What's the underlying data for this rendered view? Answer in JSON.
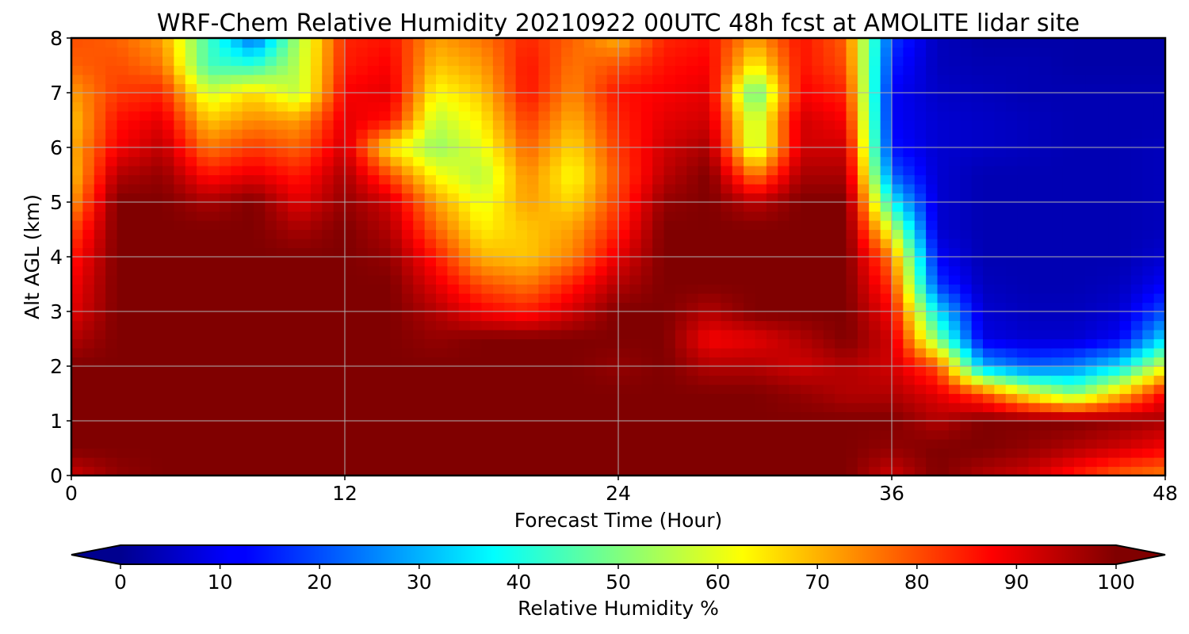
{
  "chart_data": {
    "type": "heatmap",
    "title": "WRF-Chem Relative Humidity 20210922 00UTC 48h fcst at AMOLITE lidar site",
    "xlabel": "Forecast Time (Hour)",
    "ylabel": "Alt AGL (km)",
    "xlim": [
      0,
      48
    ],
    "ylim": [
      0,
      8
    ],
    "x_ticks": [
      "0",
      "12",
      "24",
      "36",
      "48"
    ],
    "y_ticks": [
      "0",
      "1",
      "2",
      "3",
      "4",
      "5",
      "6",
      "7",
      "8"
    ],
    "grid": true,
    "colormap": "jet",
    "colorbar": {
      "label": "Relative Humidity %",
      "range": [
        0,
        100
      ],
      "ticks": [
        "0",
        "10",
        "20",
        "30",
        "40",
        "50",
        "60",
        "70",
        "80",
        "90",
        "100"
      ],
      "extend": "both",
      "orientation": "horizontal",
      "placement": "bottom"
    },
    "x": [
      0,
      2,
      4,
      6,
      8,
      10,
      12,
      14,
      16,
      18,
      20,
      22,
      24,
      26,
      28,
      30,
      32,
      34,
      36,
      38,
      40,
      42,
      44,
      46,
      48
    ],
    "y": [
      0,
      0.5,
      1,
      1.5,
      2,
      2.5,
      3,
      3.5,
      4,
      4.5,
      5,
      5.5,
      6,
      6.5,
      7,
      7.5,
      8
    ],
    "z": [
      [
        92,
        98,
        100,
        100,
        100,
        100,
        100,
        100,
        100,
        100,
        100,
        100,
        100,
        100,
        100,
        100,
        100,
        100,
        92,
        100,
        95,
        92,
        85,
        78,
        75
      ],
      [
        100,
        100,
        100,
        100,
        100,
        100,
        100,
        100,
        100,
        100,
        100,
        100,
        100,
        100,
        100,
        100,
        100,
        100,
        98,
        100,
        100,
        98,
        95,
        92,
        88
      ],
      [
        100,
        100,
        100,
        100,
        100,
        100,
        100,
        100,
        100,
        100,
        100,
        100,
        100,
        100,
        100,
        100,
        100,
        100,
        100,
        95,
        100,
        100,
        100,
        98,
        96
      ],
      [
        100,
        100,
        100,
        100,
        100,
        100,
        100,
        100,
        100,
        100,
        100,
        100,
        100,
        100,
        100,
        100,
        98,
        95,
        95,
        90,
        80,
        62,
        50,
        68,
        88
      ],
      [
        100,
        100,
        100,
        100,
        100,
        100,
        100,
        100,
        100,
        100,
        100,
        100,
        98,
        100,
        95,
        95,
        92,
        95,
        92,
        80,
        30,
        22,
        25,
        35,
        60
      ],
      [
        95,
        100,
        100,
        100,
        100,
        100,
        100,
        100,
        98,
        100,
        100,
        100,
        100,
        100,
        88,
        90,
        95,
        100,
        92,
        50,
        10,
        8,
        8,
        12,
        35
      ],
      [
        90,
        100,
        100,
        100,
        100,
        100,
        100,
        100,
        95,
        88,
        85,
        92,
        100,
        100,
        95,
        100,
        100,
        100,
        88,
        35,
        8,
        6,
        6,
        8,
        20
      ],
      [
        88,
        100,
        100,
        100,
        100,
        100,
        100,
        100,
        90,
        80,
        76,
        85,
        95,
        100,
        100,
        100,
        100,
        100,
        82,
        18,
        6,
        5,
        5,
        6,
        12
      ],
      [
        85,
        100,
        100,
        100,
        100,
        100,
        100,
        98,
        85,
        70,
        68,
        75,
        90,
        100,
        100,
        100,
        100,
        100,
        75,
        12,
        5,
        5,
        5,
        5,
        8
      ],
      [
        80,
        100,
        100,
        100,
        100,
        96,
        100,
        95,
        78,
        64,
        68,
        72,
        85,
        100,
        100,
        100,
        100,
        100,
        58,
        8,
        5,
        5,
        5,
        5,
        6
      ],
      [
        72,
        100,
        100,
        96,
        100,
        90,
        98,
        92,
        72,
        60,
        72,
        66,
        82,
        98,
        100,
        94,
        100,
        100,
        38,
        8,
        5,
        5,
        5,
        5,
        6
      ],
      [
        68,
        95,
        98,
        86,
        90,
        85,
        96,
        80,
        62,
        55,
        74,
        62,
        80,
        94,
        100,
        75,
        96,
        96,
        22,
        8,
        5,
        5,
        5,
        5,
        6
      ],
      [
        70,
        88,
        94,
        76,
        82,
        78,
        92,
        64,
        52,
        60,
        78,
        66,
        82,
        92,
        96,
        55,
        92,
        92,
        14,
        8,
        7,
        6,
        5,
        5,
        6
      ],
      [
        68,
        86,
        90,
        68,
        74,
        72,
        90,
        86,
        56,
        64,
        82,
        70,
        84,
        90,
        92,
        55,
        92,
        88,
        12,
        8,
        7,
        6,
        5,
        5,
        5
      ],
      [
        72,
        82,
        84,
        58,
        66,
        56,
        88,
        90,
        62,
        68,
        86,
        74,
        86,
        88,
        90,
        45,
        88,
        84,
        12,
        7,
        6,
        5,
        5,
        5,
        5
      ],
      [
        78,
        80,
        76,
        44,
        42,
        56,
        85,
        88,
        68,
        72,
        86,
        76,
        80,
        86,
        88,
        62,
        86,
        80,
        15,
        6,
        5,
        5,
        4,
        4,
        4
      ],
      [
        80,
        78,
        72,
        44,
        22,
        55,
        84,
        86,
        72,
        76,
        84,
        78,
        70,
        84,
        86,
        72,
        86,
        78,
        18,
        6,
        4,
        4,
        4,
        4,
        4
      ]
    ]
  }
}
